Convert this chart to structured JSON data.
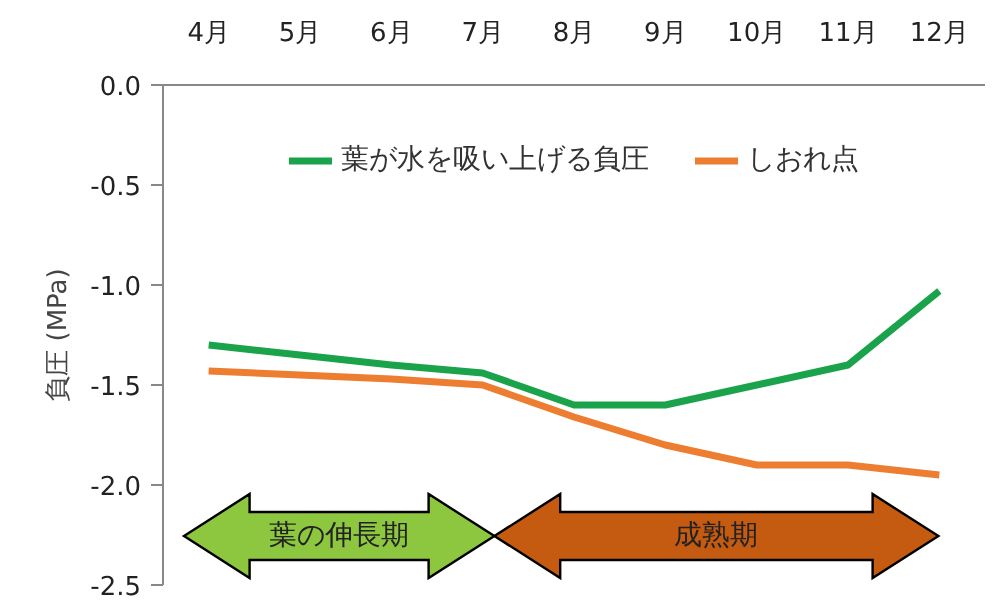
{
  "chart_data": {
    "type": "line",
    "categories": [
      "4月",
      "5月",
      "6月",
      "7月",
      "8月",
      "9月",
      "10月",
      "11月",
      "12月"
    ],
    "ylabel": "負圧 (MPa)",
    "ylim": [
      -2.5,
      0
    ],
    "yticks": [
      {
        "value": 0,
        "label": "0.0"
      },
      -0.5,
      {
        "value": -1,
        "label": "-1.0"
      },
      -1.5,
      {
        "value": -2,
        "label": "-2.0"
      },
      -2.5
    ],
    "series": [
      {
        "name": "葉が水を吸い上げる負圧",
        "color": "#1aa34a",
        "values": [
          -1.3,
          -1.35,
          -1.4,
          -1.44,
          -1.6,
          -1.6,
          -1.5,
          -1.4,
          -1.03
        ]
      },
      {
        "name": "しおれ点",
        "color": "#ed7d31",
        "values": [
          -1.43,
          -1.45,
          -1.47,
          -1.5,
          -1.66,
          -1.8,
          -1.9,
          -1.9,
          -1.95
        ]
      }
    ],
    "annotations": [
      "葉の伸長期",
      "成熟期"
    ],
    "legend": "top",
    "grid": false,
    "marker": "none",
    "line_style": "solid"
  }
}
